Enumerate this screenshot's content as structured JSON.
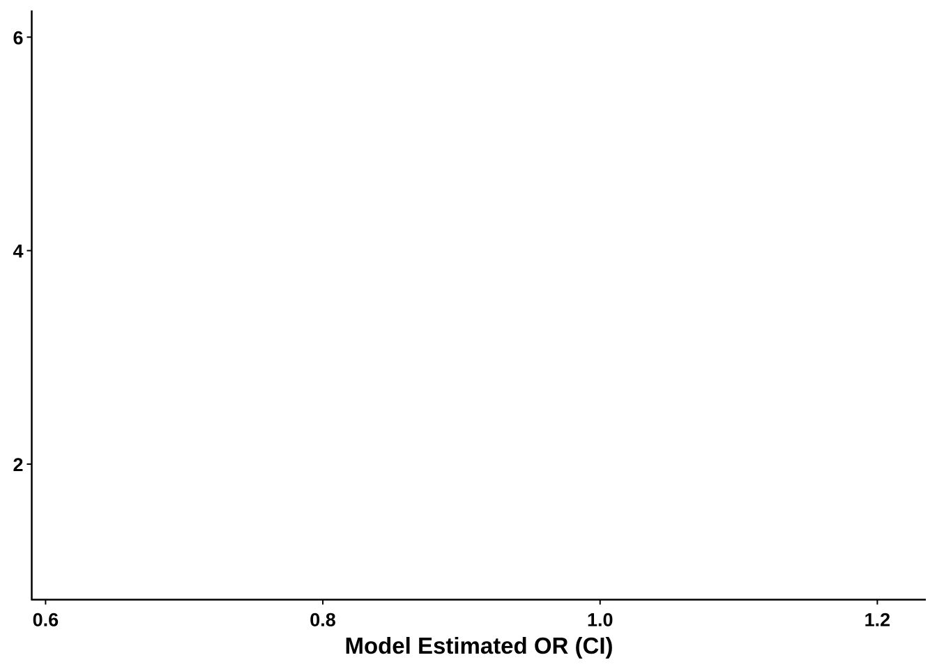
{
  "chart_data": {
    "type": "scatter",
    "title": "",
    "xlabel": "Model Estimated OR (CI)",
    "ylabel": "",
    "xlim": [
      0.59,
      1.235
    ],
    "ylim": [
      0.73,
      6.25
    ],
    "x_ticks": [
      0.6,
      0.8,
      1.0,
      1.2
    ],
    "x_tick_labels": [
      "0.6",
      "0.8",
      "1.0",
      "1.2"
    ],
    "y_ticks": [
      2,
      4,
      6
    ],
    "y_tick_labels": [
      "2",
      "4",
      "6"
    ],
    "grid": false,
    "legend": "none",
    "series": [],
    "colors": {
      "axis": "#000000",
      "background": "#ffffff"
    }
  }
}
